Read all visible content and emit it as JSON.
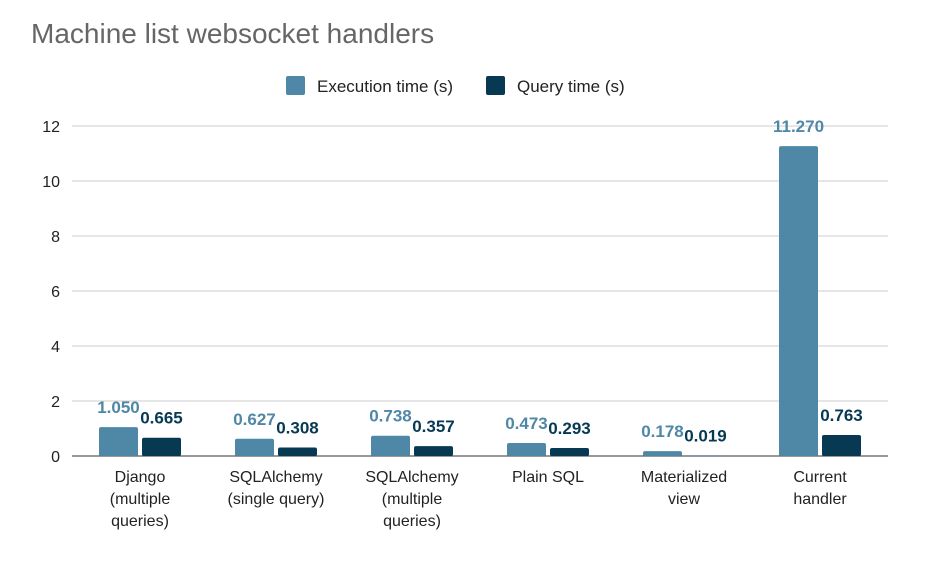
{
  "chart_data": {
    "type": "bar",
    "title": "Machine list websocket handlers",
    "xlabel": "",
    "ylabel": "",
    "ylim": [
      0,
      12
    ],
    "yticks": [
      0,
      2,
      4,
      6,
      8,
      10,
      12
    ],
    "grid": true,
    "legend_position": "top",
    "categories": [
      [
        "Django",
        "(multiple",
        "queries)"
      ],
      [
        "SQLAlchemy",
        "(single query)"
      ],
      [
        "SQLAlchemy",
        "(multiple",
        "queries)"
      ],
      [
        "Plain SQL"
      ],
      [
        "Materialized",
        "view"
      ],
      [
        "Current",
        "handler"
      ]
    ],
    "series": [
      {
        "name": "Execution time (s)",
        "color": "#4f87a6",
        "values": [
          1.05,
          0.627,
          0.738,
          0.473,
          0.178,
          11.27
        ],
        "labels": [
          "1.050",
          "0.627",
          "0.738",
          "0.473",
          "0.178",
          "11.270"
        ]
      },
      {
        "name": "Query time (s)",
        "color": "#073a52",
        "values": [
          0.665,
          0.308,
          0.357,
          0.293,
          0.019,
          0.763
        ],
        "labels": [
          "0.665",
          "0.308",
          "0.357",
          "0.293",
          "0.019",
          "0.763"
        ]
      }
    ]
  }
}
